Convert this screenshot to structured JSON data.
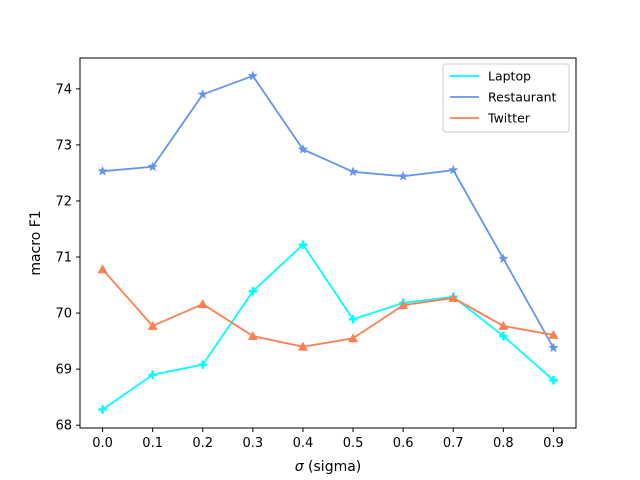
{
  "chart_data": {
    "type": "line",
    "x": [
      0.0,
      0.1,
      0.2,
      0.3,
      0.4,
      0.5,
      0.6,
      0.7,
      0.8,
      0.9
    ],
    "x_tick_labels": [
      "0.0",
      "0.1",
      "0.2",
      "0.3",
      "0.4",
      "0.5",
      "0.6",
      "0.7",
      "0.8",
      "0.9"
    ],
    "y_ticks": [
      68,
      69,
      70,
      71,
      72,
      73,
      74
    ],
    "xlabel_symbol": "σ",
    "xlabel_text": " (sigma)",
    "ylabel": "macro F1",
    "xlim": [
      -0.045,
      0.945
    ],
    "ylim": [
      67.95,
      74.55
    ],
    "grid": false,
    "legend_position": "top-right",
    "series": [
      {
        "name": "Laptop",
        "color": "#00FFFF",
        "marker": "plus",
        "values": [
          68.28,
          68.9,
          69.08,
          70.39,
          71.22,
          69.89,
          70.18,
          70.29,
          69.59,
          68.8
        ]
      },
      {
        "name": "Restaurant",
        "color": "#6495ED",
        "marker": "star",
        "values": [
          72.53,
          72.61,
          73.9,
          74.23,
          72.92,
          72.52,
          72.44,
          72.55,
          70.97,
          69.38
        ]
      },
      {
        "name": "Twitter",
        "color": "#FF7F50",
        "marker": "triangle",
        "values": [
          70.78,
          69.77,
          70.16,
          69.59,
          69.4,
          69.55,
          70.14,
          70.27,
          69.77,
          69.61
        ]
      }
    ]
  }
}
